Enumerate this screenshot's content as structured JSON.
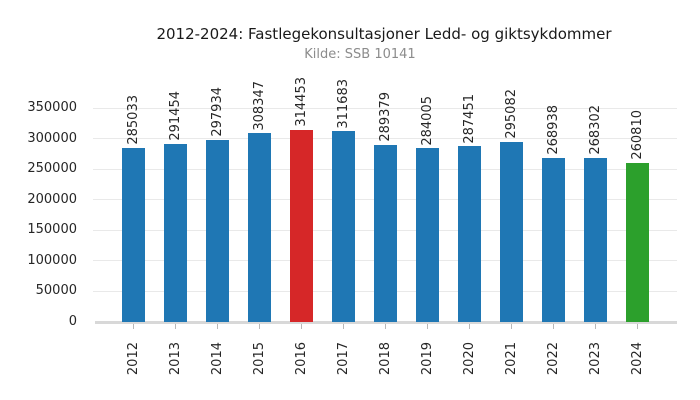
{
  "chart": {
    "title": "2012-2024: Fastlegekonsultasjoner Ledd- og giktsykdommer",
    "subtitle": "Kilde: SSB 10141"
  },
  "chart_data": {
    "type": "bar",
    "title": "2012-2024: Fastlegekonsultasjoner Ledd- og giktsykdommer",
    "subtitle": "Kilde: SSB 10141",
    "categories": [
      "2012",
      "2013",
      "2014",
      "2015",
      "2016",
      "2017",
      "2018",
      "2019",
      "2020",
      "2021",
      "2022",
      "2023",
      "2024"
    ],
    "values": [
      285033,
      291454,
      297934,
      308347,
      314453,
      311683,
      289379,
      284005,
      287451,
      295082,
      268938,
      268302,
      260810
    ],
    "bar_colors": [
      "#1f77b4",
      "#1f77b4",
      "#1f77b4",
      "#1f77b4",
      "#d62728",
      "#1f77b4",
      "#1f77b4",
      "#1f77b4",
      "#1f77b4",
      "#1f77b4",
      "#1f77b4",
      "#1f77b4",
      "#2ca02c"
    ],
    "value_labels_shown": true,
    "xlabel": "",
    "ylabel": "",
    "ylim": [
      0,
      350000
    ],
    "yticks": [
      0,
      50000,
      100000,
      150000,
      200000,
      250000,
      300000,
      350000
    ],
    "grid": true,
    "legend": "none"
  },
  "colors": {
    "default_bar": "#1f77b4",
    "highlight_bar": "#d62728",
    "latest_bar": "#2ca02c",
    "grid": "#e9e9e9",
    "axis_line": "#d8d8d8",
    "tick_mark": "#b8b8b8",
    "title_text": "#1a1a1a",
    "subtitle_text": "#8c8c8c",
    "label_text": "#262626"
  }
}
